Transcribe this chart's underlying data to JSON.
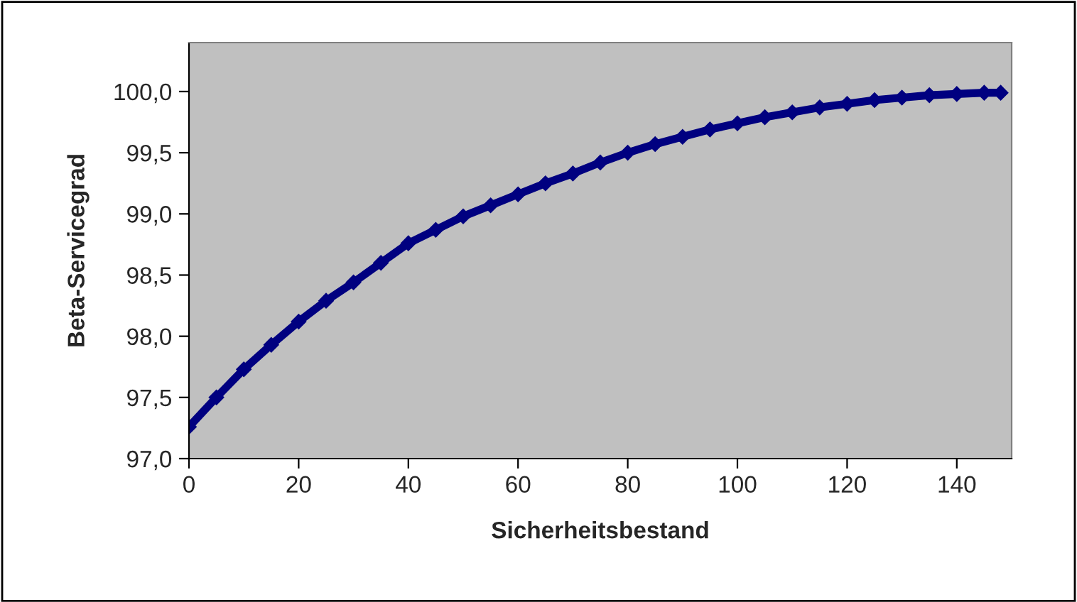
{
  "chart_data": {
    "type": "line",
    "xlabel": "Sicherheitsbestand",
    "ylabel": "Beta-Servicegrad",
    "x": [
      0,
      5,
      10,
      15,
      20,
      25,
      30,
      35,
      40,
      45,
      50,
      55,
      60,
      65,
      70,
      75,
      80,
      85,
      90,
      95,
      100,
      105,
      110,
      115,
      120,
      125,
      130,
      135,
      140,
      145,
      148
    ],
    "series": [
      {
        "color": "#000080",
        "values": [
          97.26,
          97.5,
          97.73,
          97.93,
          98.12,
          98.29,
          98.44,
          98.6,
          98.76,
          98.87,
          98.98,
          99.07,
          99.16,
          99.25,
          99.33,
          99.42,
          99.5,
          99.57,
          99.63,
          99.69,
          99.74,
          99.79,
          99.83,
          99.87,
          99.9,
          99.93,
          99.95,
          99.97,
          99.98,
          99.99,
          99.99
        ]
      }
    ],
    "xlim": [
      0,
      150
    ],
    "xticks": [
      0,
      20,
      40,
      60,
      80,
      100,
      120,
      140
    ],
    "ylim": [
      97,
      100.4
    ],
    "yticks": [
      {
        "value": 97,
        "label": "97,0"
      },
      {
        "value": 97.5,
        "label": "97,5"
      },
      {
        "value": 98,
        "label": "98,0"
      },
      {
        "value": 98.5,
        "label": "98,5"
      },
      {
        "value": 99,
        "label": "99,0"
      },
      {
        "value": 99.5,
        "label": "99,5"
      },
      {
        "value": 100,
        "label": "100,0"
      }
    ],
    "marker": "diamond",
    "line_style": "solid",
    "grid": false
  }
}
